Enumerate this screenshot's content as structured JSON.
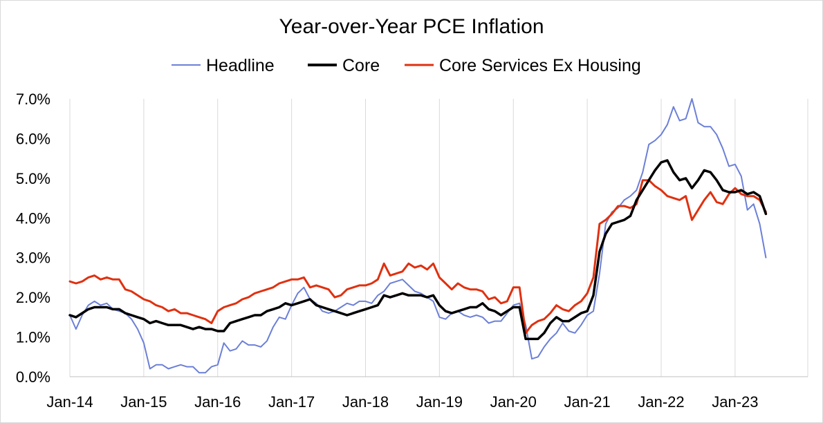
{
  "chart_data": {
    "type": "line",
    "title": "Year-over-Year PCE Inflation",
    "xlabel": "",
    "ylabel": "",
    "ylim": [
      0,
      7
    ],
    "y_ticks": [
      "0.0%",
      "1.0%",
      "2.0%",
      "3.0%",
      "4.0%",
      "5.0%",
      "6.0%",
      "7.0%"
    ],
    "x_ticks": [
      "Jan-14",
      "Jan-15",
      "Jan-16",
      "Jan-17",
      "Jan-18",
      "Jan-19",
      "Jan-20",
      "Jan-21",
      "Jan-22",
      "Jan-23"
    ],
    "grid": "vertical",
    "legend_position": "top",
    "x_start": "2014-01",
    "x_end": "2023-06",
    "series": [
      {
        "name": "Headline",
        "color": "#6b7fd7",
        "values": [
          1.55,
          1.2,
          1.55,
          1.8,
          1.9,
          1.8,
          1.85,
          1.7,
          1.65,
          1.6,
          1.45,
          1.2,
          0.85,
          0.2,
          0.3,
          0.3,
          0.2,
          0.25,
          0.3,
          0.25,
          0.25,
          0.1,
          0.1,
          0.25,
          0.3,
          0.85,
          0.65,
          0.7,
          0.9,
          0.8,
          0.8,
          0.75,
          0.9,
          1.25,
          1.5,
          1.45,
          1.8,
          2.1,
          2.25,
          1.95,
          1.85,
          1.65,
          1.6,
          1.65,
          1.75,
          1.85,
          1.8,
          1.9,
          1.9,
          1.85,
          2.05,
          2.15,
          2.35,
          2.4,
          2.45,
          2.3,
          2.15,
          2.1,
          2.0,
          1.9,
          1.5,
          1.45,
          1.6,
          1.65,
          1.55,
          1.5,
          1.55,
          1.5,
          1.35,
          1.4,
          1.4,
          1.6,
          1.8,
          1.85,
          1.3,
          0.45,
          0.5,
          0.75,
          0.95,
          1.1,
          1.35,
          1.15,
          1.1,
          1.3,
          1.55,
          1.65,
          2.6,
          3.85,
          4.15,
          4.25,
          4.45,
          4.55,
          4.7,
          5.15,
          5.85,
          5.95,
          6.1,
          6.35,
          6.8,
          6.45,
          6.5,
          7.0,
          6.4,
          6.3,
          6.3,
          6.1,
          5.75,
          5.3,
          5.35,
          5.05,
          4.2,
          4.35,
          3.85,
          3.0
        ]
      },
      {
        "name": "Core",
        "color": "#000000",
        "values": [
          1.55,
          1.5,
          1.6,
          1.7,
          1.75,
          1.75,
          1.75,
          1.7,
          1.7,
          1.6,
          1.55,
          1.5,
          1.45,
          1.35,
          1.4,
          1.35,
          1.3,
          1.3,
          1.3,
          1.25,
          1.2,
          1.25,
          1.2,
          1.2,
          1.15,
          1.15,
          1.35,
          1.4,
          1.45,
          1.5,
          1.55,
          1.55,
          1.65,
          1.7,
          1.75,
          1.85,
          1.8,
          1.85,
          1.9,
          1.95,
          1.8,
          1.75,
          1.7,
          1.65,
          1.6,
          1.55,
          1.6,
          1.65,
          1.7,
          1.75,
          1.8,
          2.05,
          2.0,
          2.05,
          2.1,
          2.05,
          2.05,
          2.05,
          2.0,
          2.05,
          1.8,
          1.65,
          1.6,
          1.65,
          1.7,
          1.75,
          1.75,
          1.85,
          1.7,
          1.65,
          1.55,
          1.65,
          1.75,
          1.75,
          0.95,
          0.95,
          0.95,
          1.1,
          1.35,
          1.5,
          1.4,
          1.4,
          1.5,
          1.6,
          1.65,
          2.05,
          3.15,
          3.6,
          3.85,
          3.9,
          3.95,
          4.05,
          4.45,
          4.7,
          4.95,
          5.2,
          5.4,
          5.45,
          5.15,
          4.95,
          5.0,
          4.75,
          4.95,
          5.2,
          5.15,
          4.95,
          4.7,
          4.65,
          4.65,
          4.7,
          4.6,
          4.65,
          4.55,
          4.1
        ]
      },
      {
        "name": "Core Services Ex Housing",
        "color": "#e0300f",
        "values": [
          2.4,
          2.35,
          2.4,
          2.5,
          2.55,
          2.45,
          2.5,
          2.45,
          2.45,
          2.2,
          2.15,
          2.05,
          1.95,
          1.9,
          1.8,
          1.75,
          1.65,
          1.7,
          1.6,
          1.6,
          1.55,
          1.5,
          1.45,
          1.35,
          1.65,
          1.75,
          1.8,
          1.85,
          1.95,
          2.0,
          2.1,
          2.15,
          2.2,
          2.25,
          2.35,
          2.4,
          2.45,
          2.45,
          2.5,
          2.25,
          2.3,
          2.25,
          2.2,
          2.0,
          2.05,
          2.2,
          2.25,
          2.3,
          2.3,
          2.35,
          2.45,
          2.85,
          2.55,
          2.6,
          2.65,
          2.85,
          2.75,
          2.8,
          2.7,
          2.85,
          2.5,
          2.35,
          2.2,
          2.35,
          2.25,
          2.2,
          2.2,
          2.15,
          1.95,
          2.0,
          1.85,
          1.9,
          2.25,
          2.25,
          1.1,
          1.3,
          1.4,
          1.45,
          1.6,
          1.8,
          1.7,
          1.65,
          1.8,
          1.9,
          2.1,
          2.5,
          3.85,
          3.95,
          4.1,
          4.3,
          4.3,
          4.25,
          4.35,
          4.95,
          4.95,
          4.8,
          4.7,
          4.55,
          4.5,
          4.45,
          4.55,
          3.95,
          4.2,
          4.45,
          4.65,
          4.4,
          4.35,
          4.6,
          4.75,
          4.6,
          4.55,
          4.55,
          4.45,
          4.15
        ]
      }
    ]
  }
}
